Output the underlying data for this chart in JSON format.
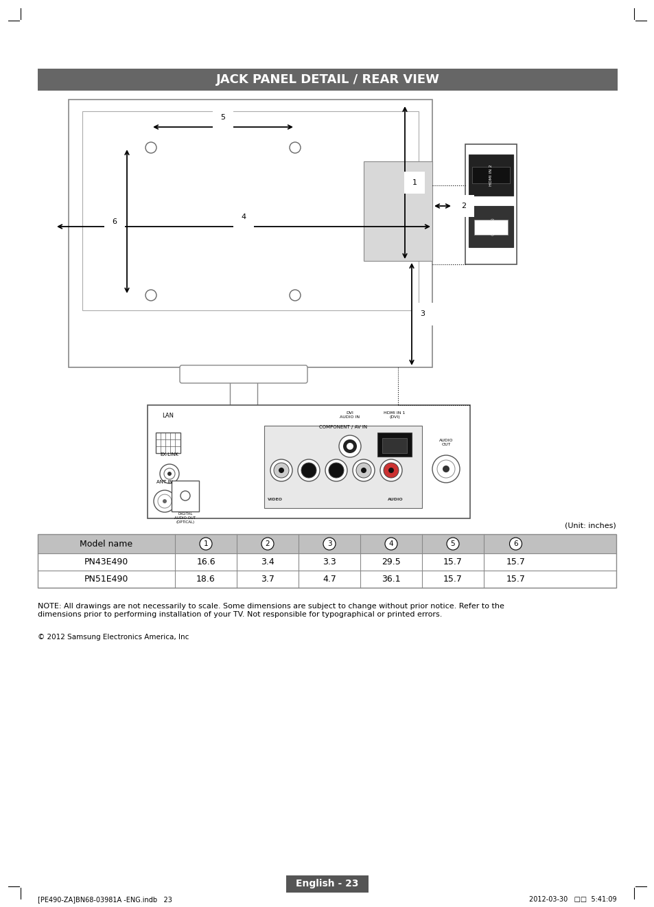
{
  "title": "JACK PANEL DETAIL / REAR VIEW",
  "title_bg": "#666666",
  "title_color": "#ffffff",
  "bg_color": "#ffffff",
  "page_text": "English - 23",
  "unit_text": "(Unit: inches)",
  "table_header": [
    "Model name",
    "1",
    "2",
    "3",
    "4",
    "5",
    "6"
  ],
  "table_rows": [
    [
      "PN43E490",
      "16.6",
      "3.4",
      "3.3",
      "29.5",
      "15.7",
      "15.7"
    ],
    [
      "PN51E490",
      "18.6",
      "3.7",
      "4.7",
      "36.1",
      "15.7",
      "15.7"
    ]
  ],
  "note_text": "NOTE: All drawings are not necessarily to scale. Some dimensions are subject to change without prior notice. Refer to the\ndimensions prior to performing installation of your TV. Not responsible for typographical or printed errors.",
  "copyright_text": "© 2012 Samsung Electronics America, Inc",
  "footer_left": "[PE490-ZA]BN68-03981A -ENG.indb   23",
  "footer_right": "2012-03-30   □□  5:41:09"
}
